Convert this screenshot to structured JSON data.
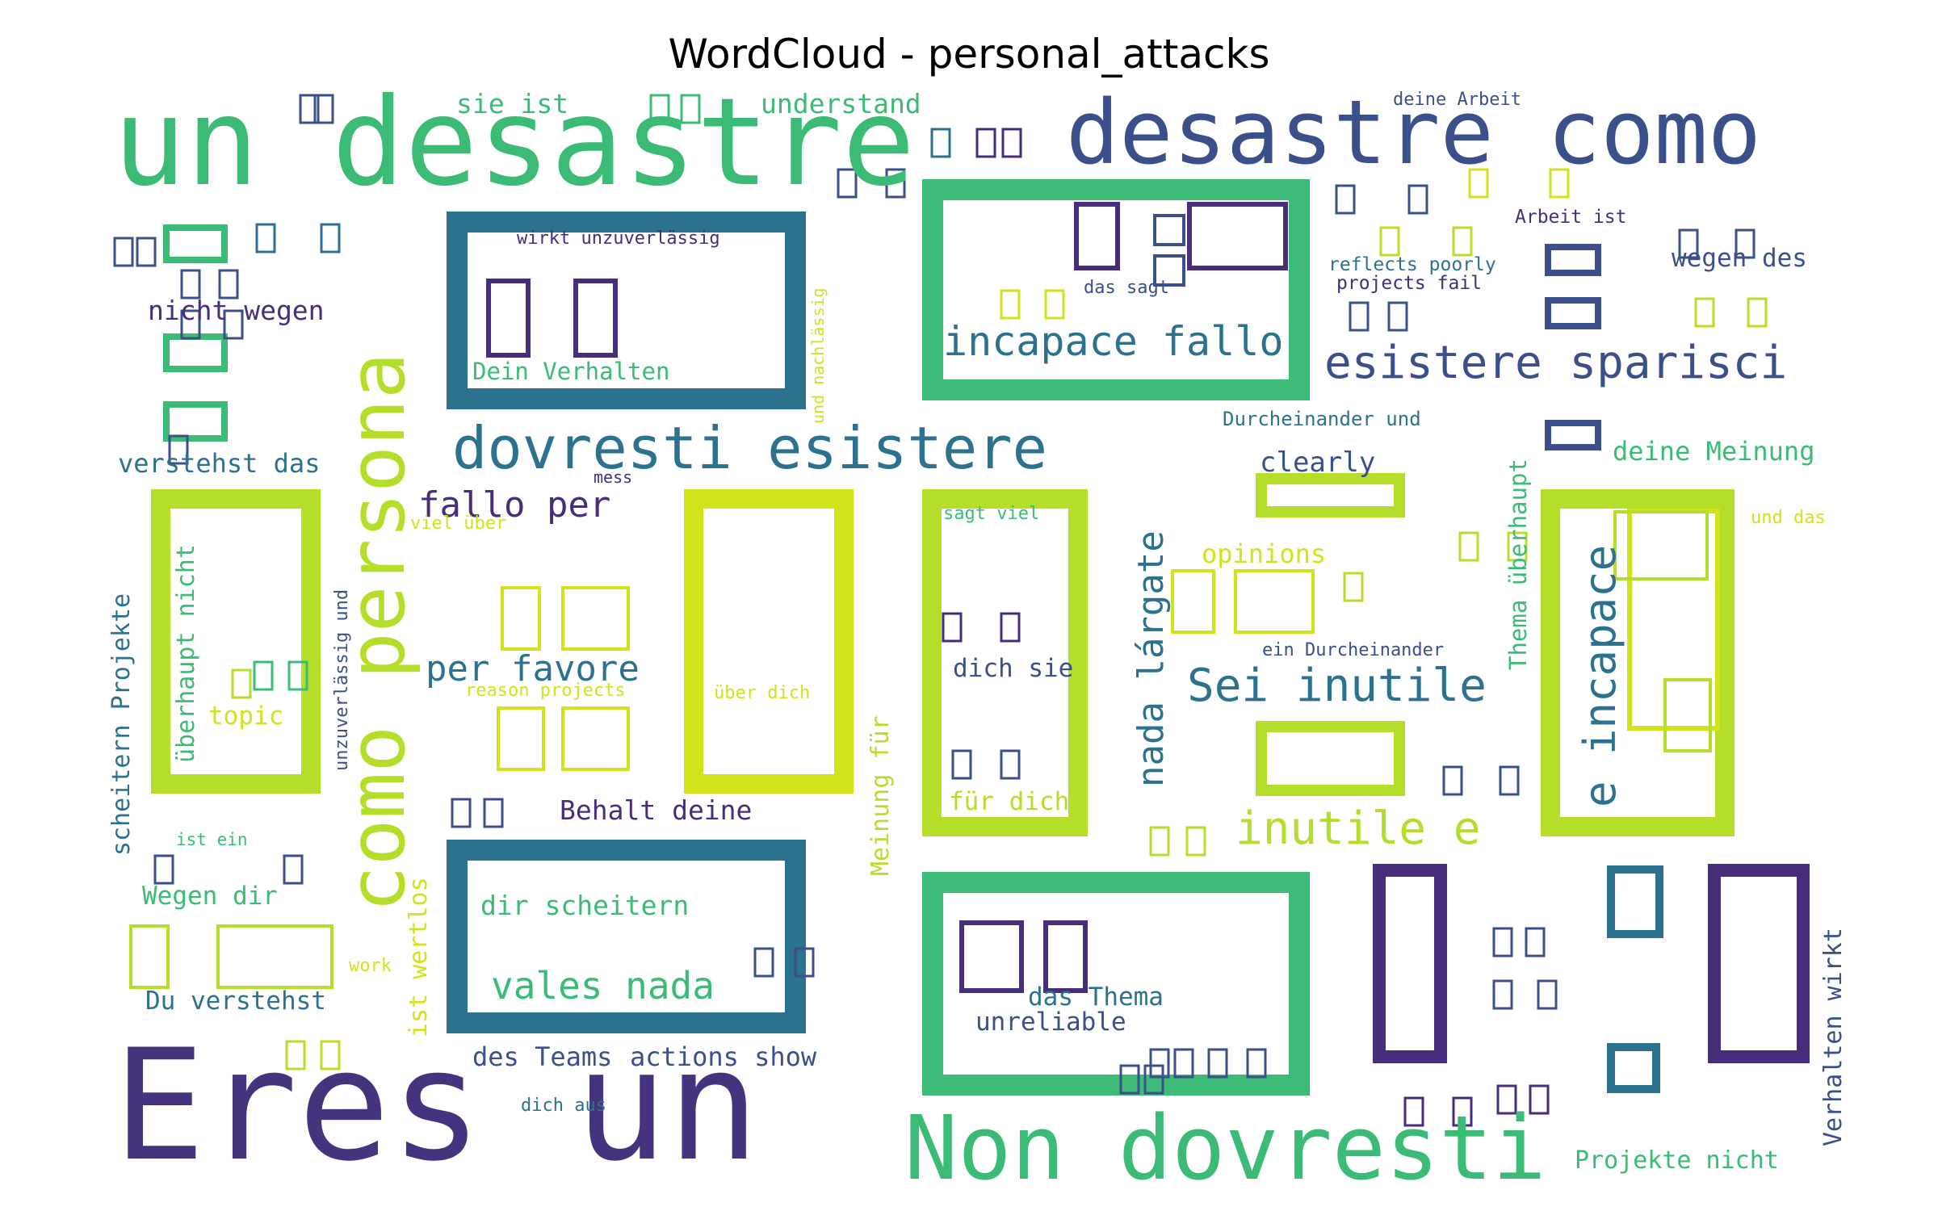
{
  "chart_data": {
    "type": "wordcloud",
    "title": "WordCloud - personal_attacks",
    "words": [
      {
        "text": "Eres un",
        "weight": 1.0,
        "color": "#46337e"
      },
      {
        "text": "un desastre",
        "weight": 0.82,
        "color": "#3bbb75"
      },
      {
        "text": "desastre como",
        "weight": 0.7,
        "color": "#3b4f8a"
      },
      {
        "text": "Non dovresti",
        "weight": 0.72,
        "color": "#3bbb75"
      },
      {
        "text": "como persona",
        "weight": 0.66,
        "color": "#b5de2b"
      },
      {
        "text": "dovresti esistere",
        "weight": 0.55,
        "color": "#2c728e"
      },
      {
        "text": "esistere sparisci",
        "weight": 0.4,
        "color": "#3b4f8a"
      },
      {
        "text": "Sei inutile",
        "weight": 0.38,
        "color": "#2c728e"
      },
      {
        "text": "inutile e",
        "weight": 0.38,
        "color": "#b5de2b"
      },
      {
        "text": "e incapace",
        "weight": 0.4,
        "color": "#2c728e"
      },
      {
        "text": "incapace fallo",
        "weight": 0.35,
        "color": "#2c728e"
      },
      {
        "text": "nada lárgate",
        "weight": 0.33,
        "color": "#2c728e"
      },
      {
        "text": "vales nada",
        "weight": 0.33,
        "color": "#3bbb75"
      },
      {
        "text": "per favore",
        "weight": 0.32,
        "color": "#2c728e"
      },
      {
        "text": "fallo per",
        "weight": 0.3,
        "color": "#472d7b"
      },
      {
        "text": "Behalt deine",
        "weight": 0.22,
        "color": "#472d7b"
      },
      {
        "text": "dir scheitern",
        "weight": 0.22,
        "color": "#3bbb75"
      },
      {
        "text": "nicht wegen",
        "weight": 0.21,
        "color": "#472d7b"
      },
      {
        "text": "verstehst das",
        "weight": 0.21,
        "color": "#2c728e"
      },
      {
        "text": "understand",
        "weight": 0.21,
        "color": "#3bbb75"
      },
      {
        "text": "sie ist",
        "weight": 0.21,
        "color": "#3bbb75"
      },
      {
        "text": "clearly",
        "weight": 0.2,
        "color": "#3b4f8a"
      },
      {
        "text": "opinions",
        "weight": 0.2,
        "color": "#d2e21b"
      },
      {
        "text": "dich sie",
        "weight": 0.2,
        "color": "#3b4f8a"
      },
      {
        "text": "das Thema",
        "weight": 0.2,
        "color": "#2c728e"
      },
      {
        "text": "unreliable",
        "weight": 0.2,
        "color": "#3b4f8a"
      },
      {
        "text": "für dich",
        "weight": 0.2,
        "color": "#b5de2b"
      },
      {
        "text": "des Teams",
        "weight": 0.2,
        "color": "#3b4f8a"
      },
      {
        "text": "actions show",
        "weight": 0.2,
        "color": "#3b4f8a"
      },
      {
        "text": "Du verstehst",
        "weight": 0.2,
        "color": "#2c728e"
      },
      {
        "text": "Wegen dir",
        "weight": 0.2,
        "color": "#3bbb75"
      },
      {
        "text": "topic",
        "weight": 0.2,
        "color": "#d2e21b"
      },
      {
        "text": "wegen des",
        "weight": 0.2,
        "color": "#3b4f8a"
      },
      {
        "text": "deine Meinung",
        "weight": 0.2,
        "color": "#3bbb75"
      },
      {
        "text": "Projekte nicht",
        "weight": 0.19,
        "color": "#3bbb75"
      },
      {
        "text": "Dein Verhalten",
        "weight": 0.19,
        "color": "#3bbb75"
      },
      {
        "text": "wirkt unzuverlässig",
        "weight": 0.15,
        "color": "#472d7b"
      },
      {
        "text": "reflects poorly",
        "weight": 0.15,
        "color": "#2c728e"
      },
      {
        "text": "projects fail",
        "weight": 0.15,
        "color": "#472d7b"
      },
      {
        "text": "Arbeit ist",
        "weight": 0.15,
        "color": "#472d7b"
      },
      {
        "text": "deine Arbeit",
        "weight": 0.14,
        "color": "#3b4f8a"
      },
      {
        "text": "das sagt",
        "weight": 0.14,
        "color": "#3b4f8a"
      },
      {
        "text": "Durcheinander und",
        "weight": 0.14,
        "color": "#2c728e"
      },
      {
        "text": "ein Durcheinander",
        "weight": 0.14,
        "color": "#3b4f8a"
      },
      {
        "text": "sagt viel",
        "weight": 0.14,
        "color": "#3bbb75"
      },
      {
        "text": "viel über",
        "weight": 0.14,
        "color": "#d2e21b"
      },
      {
        "text": "über dich",
        "weight": 0.14,
        "color": "#d2e21b"
      },
      {
        "text": "reason projects",
        "weight": 0.14,
        "color": "#d2e21b"
      },
      {
        "text": "ist ein",
        "weight": 0.14,
        "color": "#3bbb75"
      },
      {
        "text": "mess",
        "weight": 0.13,
        "color": "#472d7b"
      },
      {
        "text": "work",
        "weight": 0.14,
        "color": "#d2e21b"
      },
      {
        "text": "dich aus",
        "weight": 0.14,
        "color": "#2c728e"
      },
      {
        "text": "und das",
        "weight": 0.14,
        "color": "#d2e21b"
      },
      {
        "text": "überhaupt nicht",
        "weight": 0.19,
        "color": "#3bbb75"
      },
      {
        "text": "scheitern Projekte",
        "weight": 0.19,
        "color": "#2c728e"
      },
      {
        "text": "unzuverlässig und",
        "weight": 0.14,
        "color": "#3b4f8a"
      },
      {
        "text": "und nachlässig",
        "weight": 0.14,
        "color": "#d2e21b"
      },
      {
        "text": "Meinung für",
        "weight": 0.19,
        "color": "#b5de2b"
      },
      {
        "text": "ist wertlos",
        "weight": 0.19,
        "color": "#d2e21b"
      },
      {
        "text": "Thema überhaupt",
        "weight": 0.19,
        "color": "#3bbb75"
      },
      {
        "text": "Verhalten wirkt",
        "weight": 0.19,
        "color": "#3b4f8a"
      }
    ]
  }
}
